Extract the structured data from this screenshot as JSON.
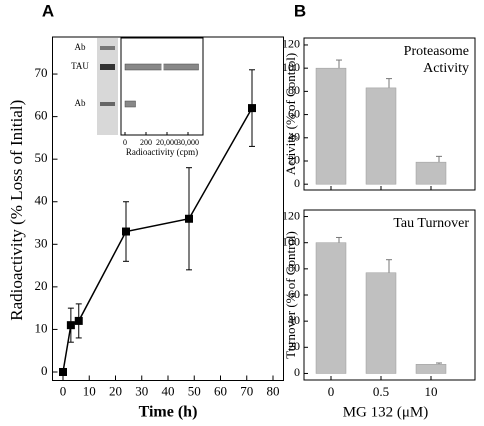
{
  "chart_data": [
    {
      "type": "line",
      "panel_label": "A",
      "y_label": "Radioactivity (% Loss of Initial)",
      "x_label": "Time (h)",
      "x": [
        0,
        3,
        6,
        24,
        48,
        72
      ],
      "values": [
        0,
        11,
        12,
        33,
        36,
        62
      ],
      "errors": [
        0,
        4,
        4,
        7,
        12,
        9
      ],
      "color": "#000000",
      "xlim": [
        -4,
        84
      ],
      "xticks": [
        0,
        10,
        20,
        30,
        40,
        50,
        60,
        70,
        80
      ],
      "ylim": [
        -2,
        78
      ],
      "yticks": [
        0,
        10,
        20,
        30,
        40,
        50,
        60,
        70
      ]
    },
    {
      "type": "bar",
      "orientation": "horizontal",
      "categories": [
        "Ab",
        "TAU",
        "Ab"
      ],
      "values": [
        0,
        35000,
        100
      ],
      "color": "#888888",
      "x_label": "Radioactivity (cpm)",
      "xlim": [
        0,
        36000
      ],
      "xticks": [
        0,
        200,
        {
          "value": 20000,
          "label": "20,000"
        },
        {
          "value": 30000,
          "label": "30,000"
        }
      ]
    },
    {
      "type": "bar",
      "panel_label": "B",
      "annotation": [
        "Proteasome",
        "Activity"
      ],
      "y_label": "Activity (% of Control)",
      "categories": [
        "0",
        "0.5",
        "10"
      ],
      "values": [
        100,
        83,
        19
      ],
      "errors": [
        7,
        8,
        5
      ],
      "color": "#c0c0c0",
      "ylim": [
        -5,
        126
      ],
      "yticks": [
        0,
        20,
        40,
        60,
        80,
        100,
        120
      ]
    },
    {
      "type": "bar",
      "annotation": [
        "Tau Turnover"
      ],
      "y_label": "Turnover (% of Control)",
      "x_label": "MG 132 (μM)",
      "categories": [
        "0",
        "0.5",
        "10"
      ],
      "values": [
        100,
        77,
        7
      ],
      "errors": [
        4,
        10,
        1
      ],
      "color": "#c0c0c0",
      "ylim": [
        -5,
        125
      ],
      "yticks": [
        0,
        20,
        40,
        60,
        80,
        100,
        120
      ]
    }
  ]
}
